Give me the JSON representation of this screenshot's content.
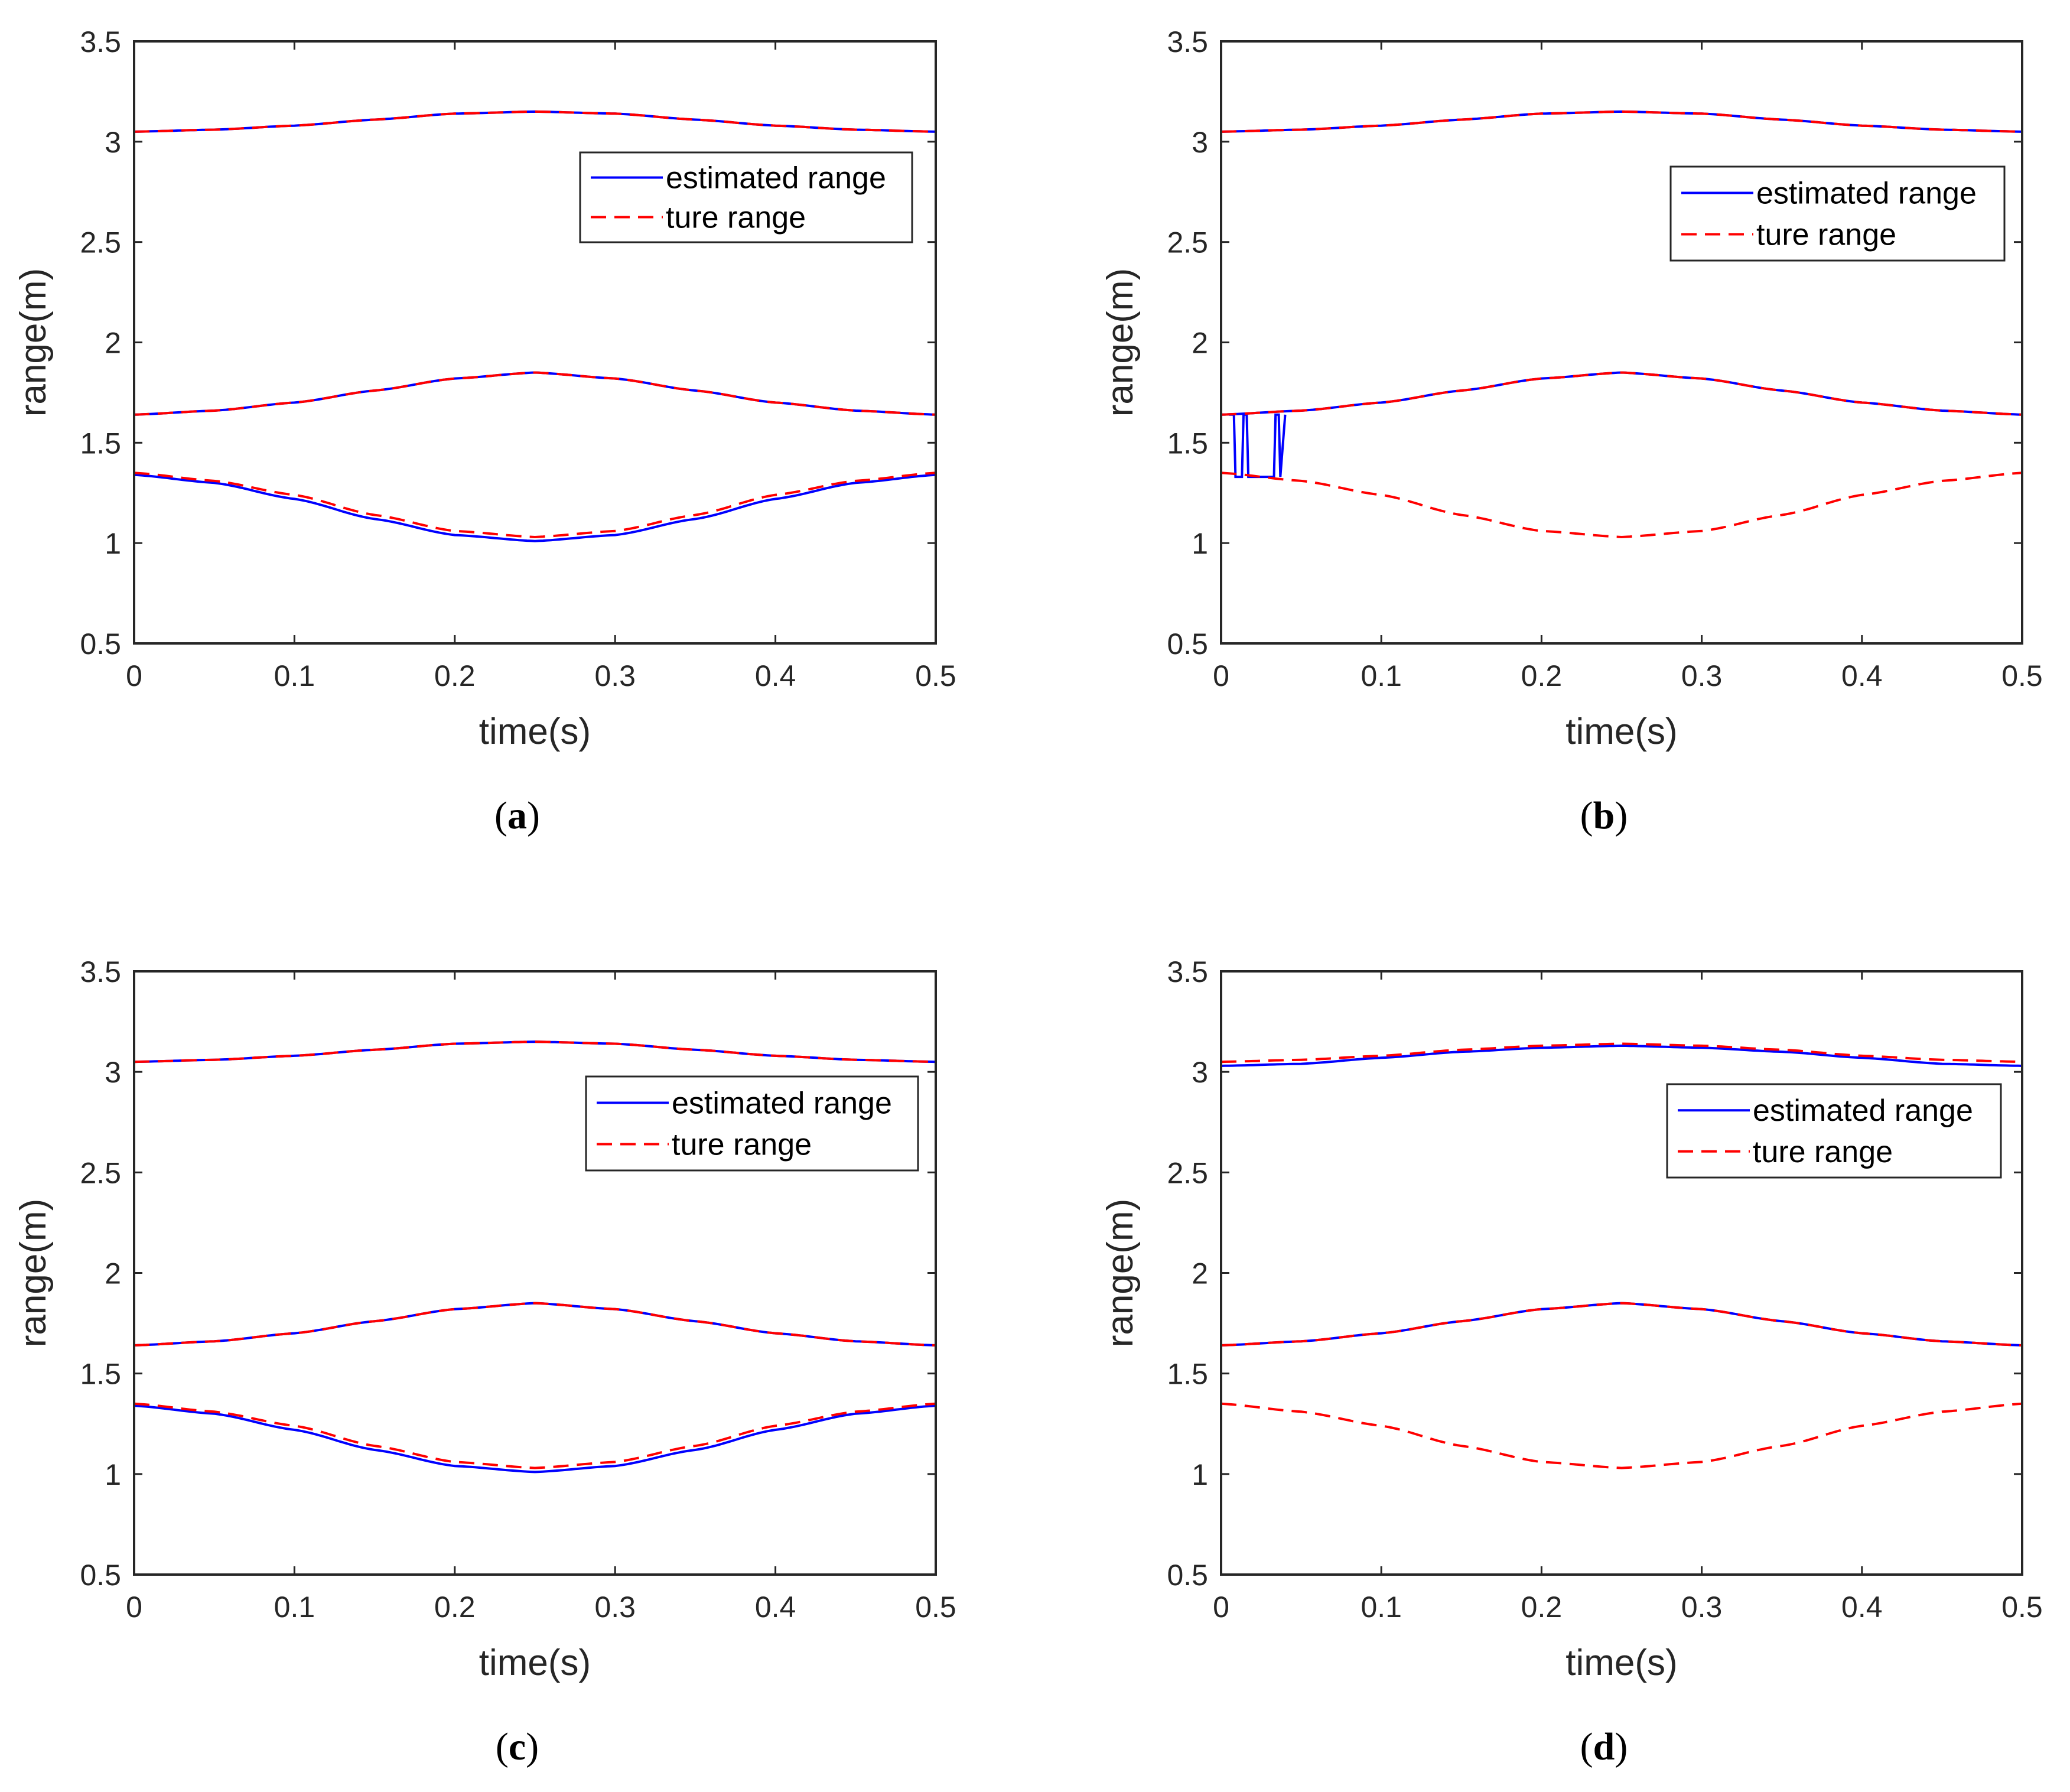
{
  "figure": {
    "panels_count": 4
  },
  "chart_data": [
    {
      "panel": "a",
      "caption_open": "(",
      "caption_letter": "a",
      "caption_close": ")",
      "type": "line",
      "xlabel": "time(s)",
      "ylabel": "range(m)",
      "xlim": [
        0,
        0.5
      ],
      "ylim": [
        0.5,
        3.5
      ],
      "xticks": [
        "0",
        "0.1",
        "0.2",
        "0.3",
        "0.4",
        "0.5"
      ],
      "yticks": [
        "0.5",
        "1",
        "1.5",
        "2",
        "2.5",
        "3",
        "3.5"
      ],
      "legend": {
        "position": "upper-right-inner",
        "entries": [
          "estimated range",
          "ture range"
        ]
      },
      "x": [
        0,
        0.05,
        0.1,
        0.15,
        0.2,
        0.25,
        0.3,
        0.35,
        0.4,
        0.45,
        0.5
      ],
      "series": [
        {
          "name": "ture range",
          "style": "dashed",
          "color": "#ff0000",
          "targets": [
            [
              3.05,
              3.06,
              3.08,
              3.11,
              3.14,
              3.15,
              3.14,
              3.11,
              3.08,
              3.06,
              3.05
            ],
            [
              1.64,
              1.66,
              1.7,
              1.76,
              1.82,
              1.85,
              1.82,
              1.76,
              1.7,
              1.66,
              1.64
            ],
            [
              1.35,
              1.31,
              1.24,
              1.14,
              1.06,
              1.03,
              1.06,
              1.14,
              1.24,
              1.31,
              1.35
            ]
          ]
        },
        {
          "name": "estimated range",
          "style": "solid",
          "color": "#0000ff",
          "targets": [
            [
              3.05,
              3.06,
              3.08,
              3.11,
              3.14,
              3.15,
              3.14,
              3.11,
              3.08,
              3.06,
              3.05
            ],
            [
              1.64,
              1.66,
              1.7,
              1.76,
              1.82,
              1.85,
              1.82,
              1.76,
              1.7,
              1.66,
              1.64
            ],
            [
              1.34,
              1.3,
              1.22,
              1.12,
              1.04,
              1.01,
              1.04,
              1.12,
              1.22,
              1.3,
              1.34
            ]
          ]
        }
      ]
    },
    {
      "panel": "b",
      "caption_open": "(",
      "caption_letter": "b",
      "caption_close": ")",
      "type": "line",
      "xlabel": "time(s)",
      "ylabel": "range(m)",
      "xlim": [
        0,
        0.5
      ],
      "ylim": [
        0.5,
        3.5
      ],
      "xticks": [
        "0",
        "0.1",
        "0.2",
        "0.3",
        "0.4",
        "0.5"
      ],
      "yticks": [
        "0.5",
        "1",
        "1.5",
        "2",
        "2.5",
        "3",
        "3.5"
      ],
      "legend": {
        "position": "upper-right-inner",
        "entries": [
          "estimated range",
          "ture range"
        ]
      },
      "x": [
        0,
        0.05,
        0.1,
        0.15,
        0.2,
        0.25,
        0.3,
        0.35,
        0.4,
        0.45,
        0.5
      ],
      "series": [
        {
          "name": "ture range",
          "style": "dashed",
          "color": "#ff0000",
          "targets": [
            [
              3.05,
              3.06,
              3.08,
              3.11,
              3.14,
              3.15,
              3.14,
              3.11,
              3.08,
              3.06,
              3.05
            ],
            [
              1.64,
              1.66,
              1.7,
              1.76,
              1.82,
              1.85,
              1.82,
              1.76,
              1.7,
              1.66,
              1.64
            ],
            [
              1.35,
              1.31,
              1.24,
              1.14,
              1.06,
              1.03,
              1.06,
              1.14,
              1.24,
              1.31,
              1.35
            ]
          ]
        },
        {
          "name": "estimated range",
          "style": "solid",
          "color": "#0000ff",
          "targets": [
            [
              3.05,
              3.06,
              3.08,
              3.11,
              3.14,
              3.15,
              3.14,
              3.11,
              3.08,
              3.06,
              3.05
            ],
            [
              1.64,
              1.66,
              1.7,
              1.76,
              1.82,
              1.85,
              1.82,
              1.76,
              1.7,
              1.66,
              1.64
            ]
          ],
          "switching_segment": {
            "x": [
              0.005,
              0.008,
              0.009,
              0.013,
              0.014,
              0.016,
              0.017,
              0.022,
              0.023,
              0.033,
              0.034,
              0.036,
              0.037,
              0.04
            ],
            "y": [
              1.64,
              1.64,
              1.33,
              1.33,
              1.64,
              1.64,
              1.33,
              1.33,
              1.33,
              1.33,
              1.64,
              1.64,
              1.33,
              1.64
            ]
          }
        }
      ]
    },
    {
      "panel": "c",
      "caption_open": "(",
      "caption_letter": "c",
      "caption_close": ")",
      "type": "line",
      "xlabel": "time(s)",
      "ylabel": "range(m)",
      "xlim": [
        0,
        0.5
      ],
      "ylim": [
        0.5,
        3.5
      ],
      "xticks": [
        "0",
        "0.1",
        "0.2",
        "0.3",
        "0.4",
        "0.5"
      ],
      "yticks": [
        "0.5",
        "1",
        "1.5",
        "2",
        "2.5",
        "3",
        "3.5"
      ],
      "legend": {
        "position": "upper-right-inner",
        "entries": [
          "estimated range",
          "ture range"
        ]
      },
      "x": [
        0,
        0.05,
        0.1,
        0.15,
        0.2,
        0.25,
        0.3,
        0.35,
        0.4,
        0.45,
        0.5
      ],
      "series": [
        {
          "name": "ture range",
          "style": "dashed",
          "color": "#ff0000",
          "targets": [
            [
              3.05,
              3.06,
              3.08,
              3.11,
              3.14,
              3.15,
              3.14,
              3.11,
              3.08,
              3.06,
              3.05
            ],
            [
              1.64,
              1.66,
              1.7,
              1.76,
              1.82,
              1.85,
              1.82,
              1.76,
              1.7,
              1.66,
              1.64
            ],
            [
              1.35,
              1.31,
              1.24,
              1.14,
              1.06,
              1.03,
              1.06,
              1.14,
              1.24,
              1.31,
              1.35
            ]
          ]
        },
        {
          "name": "estimated range",
          "style": "solid",
          "color": "#0000ff",
          "targets": [
            [
              3.05,
              3.06,
              3.08,
              3.11,
              3.14,
              3.15,
              3.14,
              3.11,
              3.08,
              3.06,
              3.05
            ],
            [
              1.64,
              1.66,
              1.7,
              1.76,
              1.82,
              1.85,
              1.82,
              1.76,
              1.7,
              1.66,
              1.64
            ],
            [
              1.34,
              1.3,
              1.22,
              1.12,
              1.04,
              1.01,
              1.04,
              1.12,
              1.22,
              1.3,
              1.34
            ]
          ]
        }
      ]
    },
    {
      "panel": "d",
      "caption_open": "(",
      "caption_letter": "d",
      "caption_close": ")",
      "type": "line",
      "xlabel": "time(s)",
      "ylabel": "range(m)",
      "xlim": [
        0,
        0.5
      ],
      "ylim": [
        0.5,
        3.5
      ],
      "xticks": [
        "0",
        "0.1",
        "0.2",
        "0.3",
        "0.4",
        "0.5"
      ],
      "yticks": [
        "0.5",
        "1",
        "1.5",
        "2",
        "2.5",
        "3",
        "3.5"
      ],
      "legend": {
        "position": "upper-right-inner",
        "entries": [
          "estimated range",
          "ture range"
        ]
      },
      "x": [
        0,
        0.05,
        0.1,
        0.15,
        0.2,
        0.25,
        0.3,
        0.35,
        0.4,
        0.45,
        0.5
      ],
      "series": [
        {
          "name": "ture range",
          "style": "dashed",
          "color": "#ff0000",
          "targets": [
            [
              3.05,
              3.06,
              3.08,
              3.11,
              3.13,
              3.14,
              3.13,
              3.11,
              3.08,
              3.06,
              3.05
            ],
            [
              1.64,
              1.66,
              1.7,
              1.76,
              1.82,
              1.85,
              1.82,
              1.76,
              1.7,
              1.66,
              1.64
            ],
            [
              1.35,
              1.31,
              1.24,
              1.14,
              1.06,
              1.03,
              1.06,
              1.14,
              1.24,
              1.31,
              1.35
            ]
          ]
        },
        {
          "name": "estimated range",
          "style": "solid",
          "color": "#0000ff",
          "targets": [
            [
              3.03,
              3.04,
              3.07,
              3.1,
              3.12,
              3.13,
              3.12,
              3.1,
              3.07,
              3.04,
              3.03
            ],
            [
              1.64,
              1.66,
              1.7,
              1.76,
              1.82,
              1.85,
              1.82,
              1.76,
              1.7,
              1.66,
              1.64
            ]
          ]
        }
      ]
    }
  ]
}
